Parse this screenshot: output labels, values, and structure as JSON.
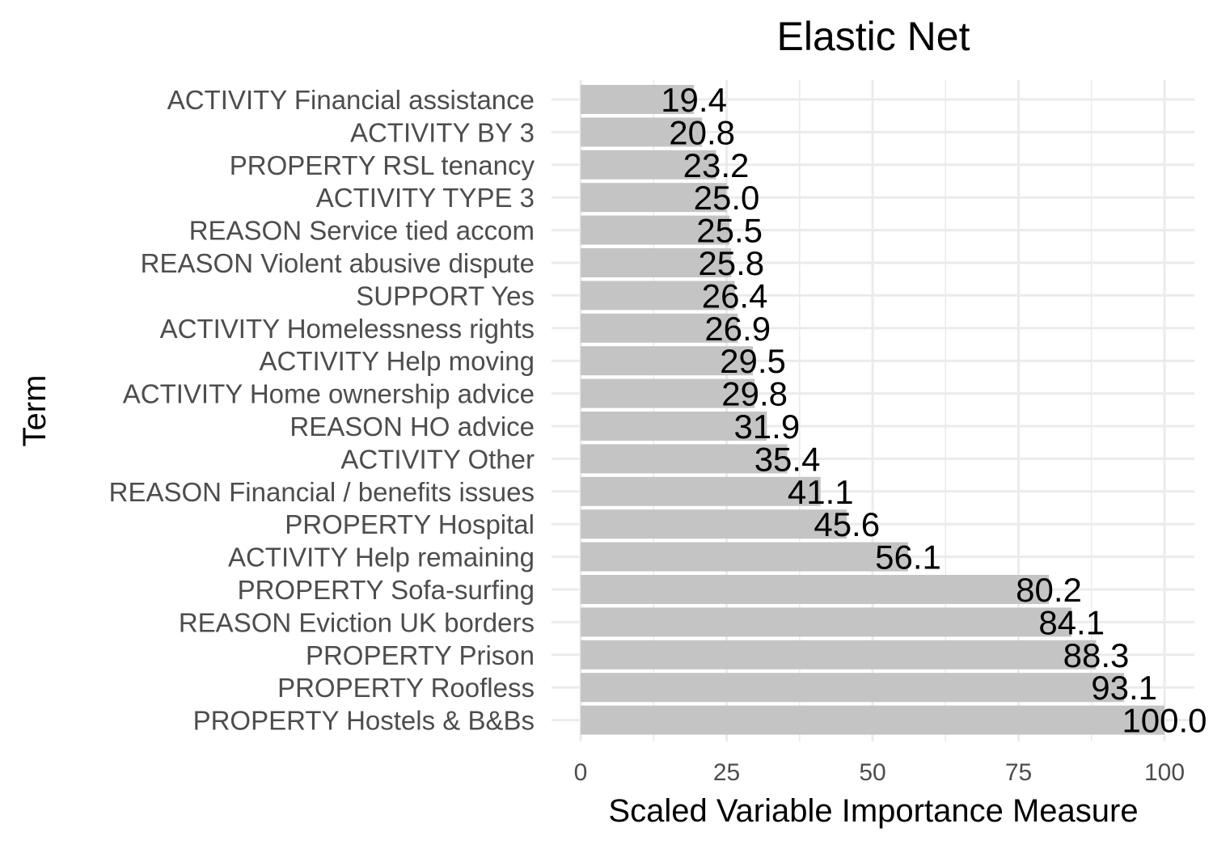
{
  "chart_data": {
    "type": "bar",
    "orientation": "horizontal",
    "title": "Elastic Net",
    "xlabel": "Scaled Variable Importance Measure",
    "ylabel": "Term",
    "xlim": [
      0,
      100
    ],
    "xticks": [
      "0",
      "25",
      "50",
      "75",
      "100"
    ],
    "bar_color": "#c4c4c4",
    "grid": true,
    "legend": "none",
    "categories": [
      "ACTIVITY Financial assistance",
      "ACTIVITY BY 3",
      "PROPERTY RSL tenancy",
      "ACTIVITY TYPE 3",
      "REASON Service tied accom",
      "REASON Violent abusive dispute",
      "SUPPORT Yes",
      "ACTIVITY Homelessness rights",
      "ACTIVITY Help moving",
      "ACTIVITY Home ownership advice",
      "REASON HO advice",
      "ACTIVITY Other",
      "REASON Financial / benefits issues",
      "PROPERTY Hospital",
      "ACTIVITY Help remaining",
      "PROPERTY Sofa-surfing",
      "REASON Eviction UK borders",
      "PROPERTY Prison",
      "PROPERTY Roofless",
      "PROPERTY Hostels & B&Bs"
    ],
    "values": [
      19.4,
      20.8,
      23.2,
      25.0,
      25.5,
      25.8,
      26.4,
      26.9,
      29.5,
      29.8,
      31.9,
      35.4,
      41.1,
      45.6,
      56.1,
      80.2,
      84.1,
      88.3,
      93.1,
      100.0
    ],
    "data_labels": [
      "19.4",
      "20.8",
      "23.2",
      "25.0",
      "25.5",
      "25.8",
      "26.4",
      "26.9",
      "29.5",
      "29.8",
      "31.9",
      "35.4",
      "41.1",
      "45.6",
      "56.1",
      "80.2",
      "84.1",
      "88.3",
      "93.1",
      "100.0"
    ]
  }
}
